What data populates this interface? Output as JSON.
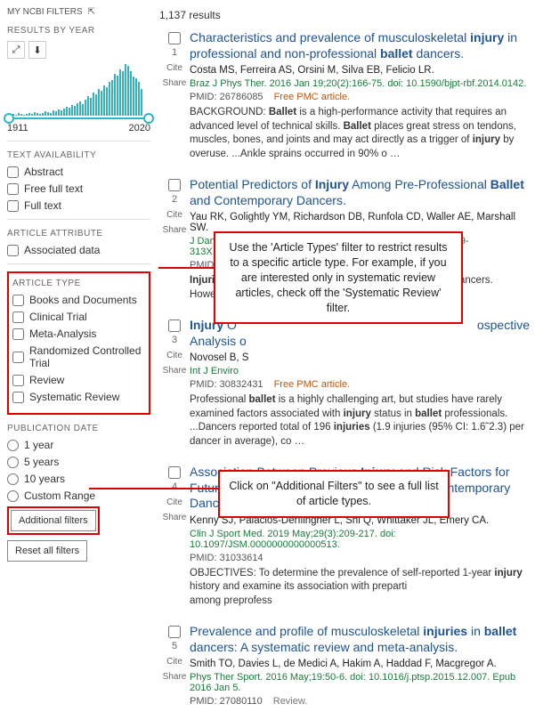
{
  "header": {
    "my_filters": "MY NCBI FILTERS",
    "icon": "⇱"
  },
  "results_count": "1,137 results",
  "year_section": {
    "label": "RESULTS BY YEAR",
    "expand_icon": "⤢",
    "download_icon": "⬇",
    "start": "1911",
    "end": "2020",
    "bars": [
      2,
      1,
      2,
      1,
      3,
      2,
      1,
      2,
      3,
      2,
      4,
      3,
      2,
      3,
      5,
      4,
      3,
      6,
      5,
      7,
      6,
      8,
      10,
      9,
      12,
      11,
      14,
      16,
      13,
      18,
      22,
      20,
      26,
      24,
      30,
      28,
      34,
      32,
      38,
      40,
      47,
      45,
      52,
      50,
      58,
      56,
      50,
      44,
      42,
      38,
      30
    ]
  },
  "filters": {
    "text_avail": {
      "label": "TEXT AVAILABILITY",
      "items": [
        "Abstract",
        "Free full text",
        "Full text"
      ]
    },
    "attr": {
      "label": "ARTICLE ATTRIBUTE",
      "items": [
        "Associated data"
      ]
    },
    "type": {
      "label": "ARTICLE TYPE",
      "items": [
        "Books and Documents",
        "Clinical Trial",
        "Meta-Analysis",
        "Randomized Controlled Trial",
        "Review",
        "Systematic Review"
      ]
    },
    "pub_date": {
      "label": "PUBLICATION DATE",
      "items": [
        "1 year",
        "5 years",
        "10 years",
        "Custom Range"
      ]
    },
    "additional": "Additional filters",
    "reset": "Reset all filters"
  },
  "callouts": {
    "c1": "Use the 'Article Types' filter to restrict results to a specific article type. For example, if you are interested only in systematic review articles, check off the 'Systematic Review' filter.",
    "c2": "Click on \"Additional Filters\" to see a full list of article types."
  },
  "results": [
    {
      "num": "1",
      "cite": "Cite",
      "share": "Share",
      "title": "Characteristics and prevalence of musculoskeletal <b>injury</b> in professional and non-professional <b>ballet</b> dancers.",
      "authors": "Costa MS, Ferreira AS, Orsini M, Silva EB, Felicio LR.",
      "journal": "Braz J Phys Ther. 2016 Jan 19;20(2):166-75. doi: 10.1590/bjpt-rbf.2014.0142.",
      "pmid": "PMID: 26786085",
      "free": "Free PMC article.",
      "snippet": "BACKGROUND: <b>Ballet</b> is a high-performance activity that requires an advanced level of technical skills. <b>Ballet</b> places great stress on tendons, muscles, bones, and joints and may act directly as a trigger of <b>injury</b> by overuse. ...Ankle sprains occurred in 90% o …"
    },
    {
      "num": "2",
      "cite": "Cite",
      "share": "Share",
      "title": "Potential Predictors of <b>Injury</b> Among Pre-Professional <b>Ballet</b> and Contemporary Dancers.",
      "authors": "Yau RK, Golightly YM, Richardson DB, Runfola CD, Waller AE, Marshall SW.",
      "journal": "J Dance Med Sci. 2017 Jun 15;21(2):53-63. doi: 10.12678/1089-313X.21.2.53.",
      "pmid": "PMID: 28535848",
      "free": "",
      "snippet": "<b>Injuries</b> occur frequently among <b>ballet</b> and contemporary dancers. However, limited literature exists on <b>injuries</b> to model for <b>in</b>"
    },
    {
      "num": "3",
      "cite": "Cite",
      "share": "Share",
      "title": "<b>Injury</b> O<br>Analysis o",
      "title_end": "ospective",
      "authors": "Novosel B, S",
      "journal": "Int J Enviro",
      "pmid": "PMID: 30832431",
      "free": "Free PMC article.",
      "snippet": "Professional <b>ballet</b> is a highly challenging art, but studies have rarely examined factors associated with <b>injury</b> status in <b>ballet</b> professionals. ...Dancers reported total of 196 <b>injuries</b> (1.9 injuries (95% CI: 1.6˜2.3) per dancer in average), co …"
    },
    {
      "num": "4",
      "cite": "Cite",
      "share": "Share",
      "title": "Association Between Previous <b>Injury</b> and Risk Factors for Future <b>Injury</b> in Preprofessional <b>Ballet</b> and Contemporary Dancers.",
      "authors": "Kenny SJ, Palacios-Derflingher L, Shi Q, Whittaker JL, Emery CA.",
      "journal": "Clin J Sport Med. 2019 May;29(3):209-217. doi: 10.1097/JSM.0000000000000513.",
      "pmid": "PMID: 31033614",
      "free": "",
      "snippet": "OBJECTIVES: To determine the prevalence of self-reported 1-year <b>injury</b> history and examine its association with preparti<br>among preprofess"
    },
    {
      "num": "5",
      "cite": "Cite",
      "share": "Share",
      "title": "Prevalence and profile of musculoskeletal <b>injuries</b> in <b>ballet</b> dancers: A systematic review and meta-analysis.",
      "authors": "Smith TO, Davies L, de Medici A, Hakim A, Haddad F, Macgregor A.",
      "journal": "Phys Ther Sport. 2016 May;19:50-6. doi: 10.1016/j.ptsp.2015.12.007. Epub 2016 Jan 5.",
      "pmid": "PMID: 27080110",
      "free": "",
      "review": "Review.",
      "snippet": ""
    }
  ]
}
